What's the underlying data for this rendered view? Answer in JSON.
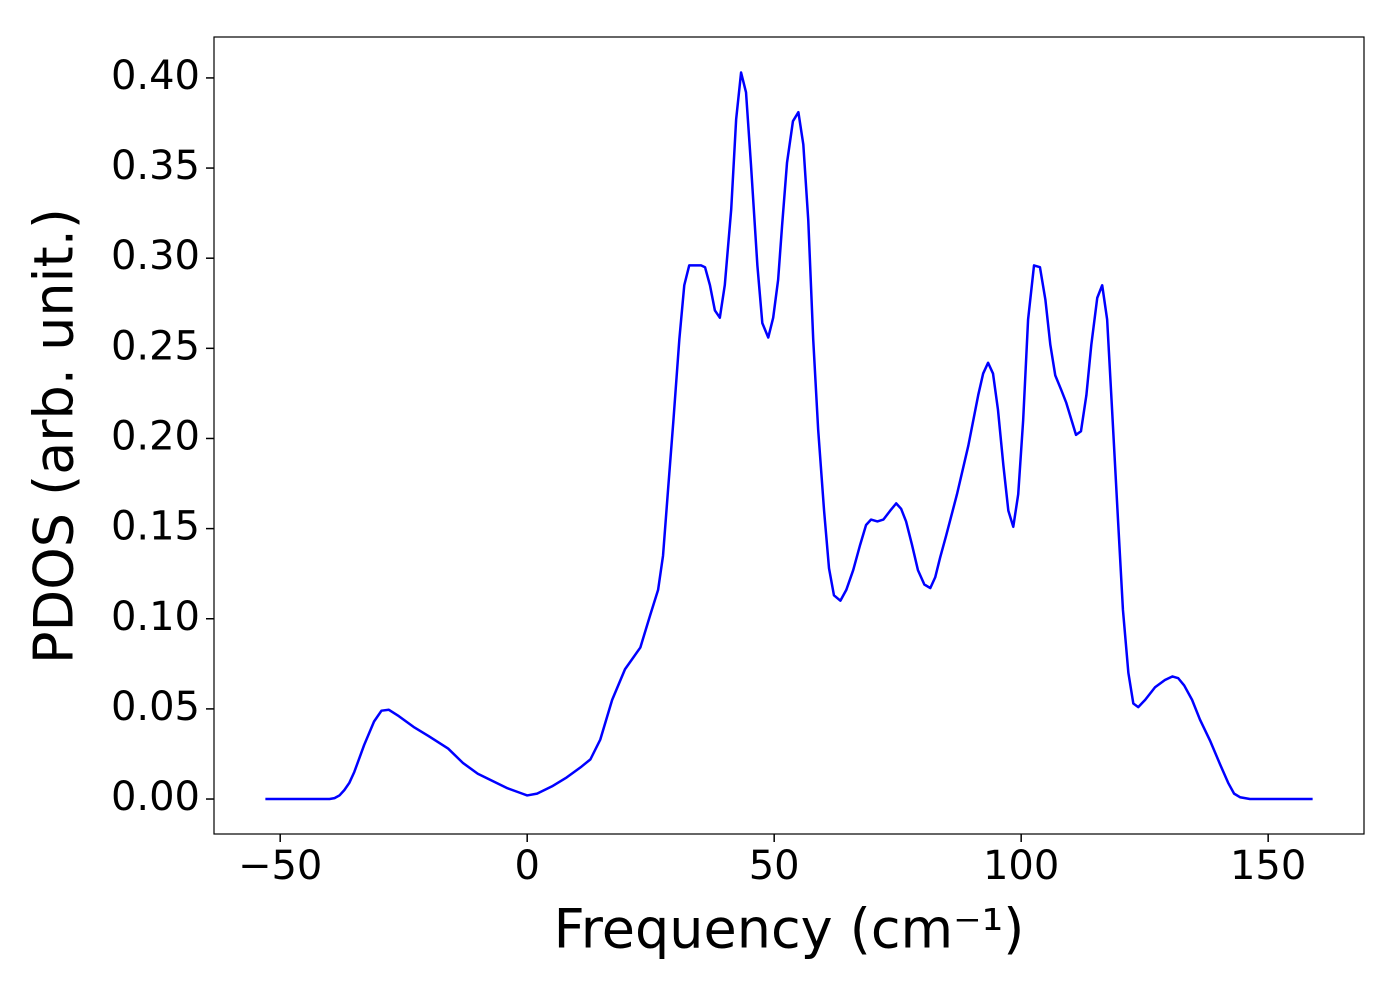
{
  "chart_data": {
    "type": "line",
    "xlabel": "Frequency (cm⁻¹)",
    "ylabel": "PDOS (arb. unit.)",
    "series": [
      {
        "color": "#0000ff",
        "x": [
          -53,
          -40,
          -39,
          -38,
          -37,
          -36,
          -35,
          -33,
          -31,
          -29.5,
          -28,
          -26,
          -23,
          -20,
          -16,
          -13,
          -10,
          -7,
          -4,
          -1,
          0,
          2,
          5,
          8,
          11,
          12.8,
          14.8,
          17.2,
          19.8,
          22.9,
          24.9,
          26.5,
          27.5,
          28.5,
          29.6,
          30.8,
          31.8,
          32.8,
          35.2,
          36,
          37,
          38,
          39,
          40,
          41.3,
          42.3,
          43.3,
          44.3,
          45.3,
          46.6,
          47.6,
          48.8,
          49.8,
          50.8,
          51.6,
          52.6,
          53.8,
          54.9,
          55.9,
          56.9,
          57.9,
          58.9,
          60.1,
          61.1,
          62.1,
          63.4,
          64.6,
          66,
          67.4,
          68.6,
          69.6,
          70.9,
          72.1,
          73.5,
          74.7,
          75.7,
          76.7,
          77.9,
          79.1,
          80.4,
          81.6,
          82.6,
          83.6,
          84.8,
          87,
          89.3,
          91.3,
          92.3,
          93.3,
          94.3,
          95.3,
          96.4,
          97.4,
          98.4,
          99.4,
          100.4,
          101.4,
          102.6,
          103.8,
          104.9,
          105.9,
          106.9,
          108.1,
          109.1,
          110.1,
          111.1,
          112.1,
          113.2,
          114.2,
          115.4,
          116.4,
          117.4,
          118.4,
          119.6,
          120.6,
          121.7,
          122.7,
          123.7,
          125.1,
          127.1,
          129.1,
          130.6,
          131.8,
          133,
          134.6,
          136.2,
          138.3,
          140.3,
          141.9,
          143.1,
          144.3,
          146.3,
          159
        ],
        "values": [
          0,
          0,
          0.0005,
          0.002,
          0.005,
          0.009,
          0.015,
          0.03,
          0.043,
          0.049,
          0.0495,
          0.046,
          0.04,
          0.035,
          0.028,
          0.02,
          0.014,
          0.01,
          0.006,
          0.003,
          0.002,
          0.003,
          0.007,
          0.012,
          0.018,
          0.022,
          0.033,
          0.055,
          0.072,
          0.084,
          0.102,
          0.116,
          0.135,
          0.171,
          0.21,
          0.255,
          0.285,
          0.296,
          0.296,
          0.295,
          0.285,
          0.271,
          0.267,
          0.285,
          0.327,
          0.377,
          0.403,
          0.392,
          0.352,
          0.296,
          0.264,
          0.256,
          0.267,
          0.288,
          0.318,
          0.353,
          0.376,
          0.381,
          0.363,
          0.321,
          0.255,
          0.205,
          0.16,
          0.128,
          0.113,
          0.11,
          0.116,
          0.127,
          0.141,
          0.152,
          0.155,
          0.154,
          0.155,
          0.16,
          0.164,
          0.161,
          0.154,
          0.141,
          0.127,
          0.119,
          0.117,
          0.123,
          0.134,
          0.146,
          0.169,
          0.196,
          0.224,
          0.236,
          0.242,
          0.236,
          0.216,
          0.185,
          0.16,
          0.151,
          0.169,
          0.21,
          0.266,
          0.296,
          0.295,
          0.277,
          0.252,
          0.235,
          0.227,
          0.22,
          0.211,
          0.202,
          0.204,
          0.224,
          0.252,
          0.278,
          0.285,
          0.266,
          0.216,
          0.155,
          0.105,
          0.07,
          0.053,
          0.051,
          0.055,
          0.062,
          0.066,
          0.068,
          0.067,
          0.063,
          0.055,
          0.044,
          0.032,
          0.019,
          0.009,
          0.003,
          0.001,
          0,
          0
        ]
      }
    ],
    "xlim": [
      -63.4,
      169.4
    ],
    "ylim": [
      -0.0194,
      0.4227
    ],
    "xticks": [
      {
        "value": -50,
        "label": "−50"
      },
      0,
      50,
      100,
      150
    ],
    "yticks": [
      {
        "value": 0,
        "label": "0.00"
      },
      {
        "value": 0.05,
        "label": "0.05"
      },
      {
        "value": 0.1,
        "label": "0.10"
      },
      {
        "value": 0.15,
        "label": "0.15"
      },
      {
        "value": 0.2,
        "label": "0.20"
      },
      {
        "value": 0.25,
        "label": "0.25"
      },
      {
        "value": 0.3,
        "label": "0.30"
      },
      {
        "value": 0.35,
        "label": "0.35"
      },
      {
        "value": 0.4,
        "label": "0.40"
      }
    ]
  }
}
